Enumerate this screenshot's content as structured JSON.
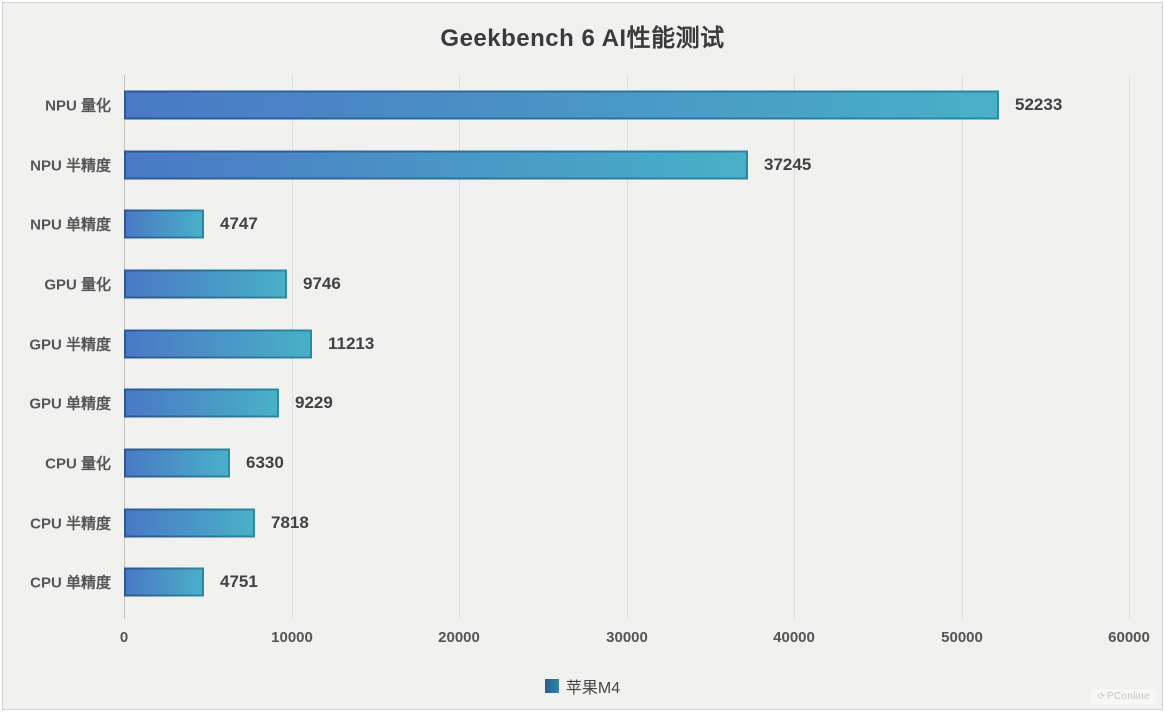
{
  "title": "Geekbench 6 AI性能测试",
  "legend": {
    "series_label": "苹果M4"
  },
  "watermark": {
    "label": "PConline"
  },
  "colors": {
    "background": "#f1f1ef",
    "bar_fill_start": "#4a79c6",
    "bar_fill_end": "#49b0c7",
    "bar_border_start": "#2f5796",
    "bar_border_end": "#2a89a3",
    "gridline": "#dfdfdd",
    "axis_line": "#c3c3c1",
    "title_text": "#3b3b3b",
    "label_text": "#565656",
    "value_text": "#424242"
  },
  "chart_data": {
    "type": "bar",
    "orientation": "horizontal",
    "title": "Geekbench 6 AI性能测试",
    "categories": [
      "NPU 量化",
      "NPU 半精度",
      "NPU 单精度",
      "GPU 量化",
      "GPU 半精度",
      "GPU 单精度",
      "CPU 量化",
      "CPU 半精度",
      "CPU 单精度"
    ],
    "series": [
      {
        "name": "苹果M4",
        "values": [
          52233,
          37245,
          4747,
          9746,
          11213,
          9229,
          6330,
          7818,
          4751
        ]
      }
    ],
    "xlabel": "",
    "ylabel": "",
    "xlim": [
      0,
      60000
    ],
    "x_ticks": [
      0,
      10000,
      20000,
      30000,
      40000,
      50000,
      60000
    ],
    "grid": true,
    "data_labels": true,
    "legend_position": "bottom"
  }
}
